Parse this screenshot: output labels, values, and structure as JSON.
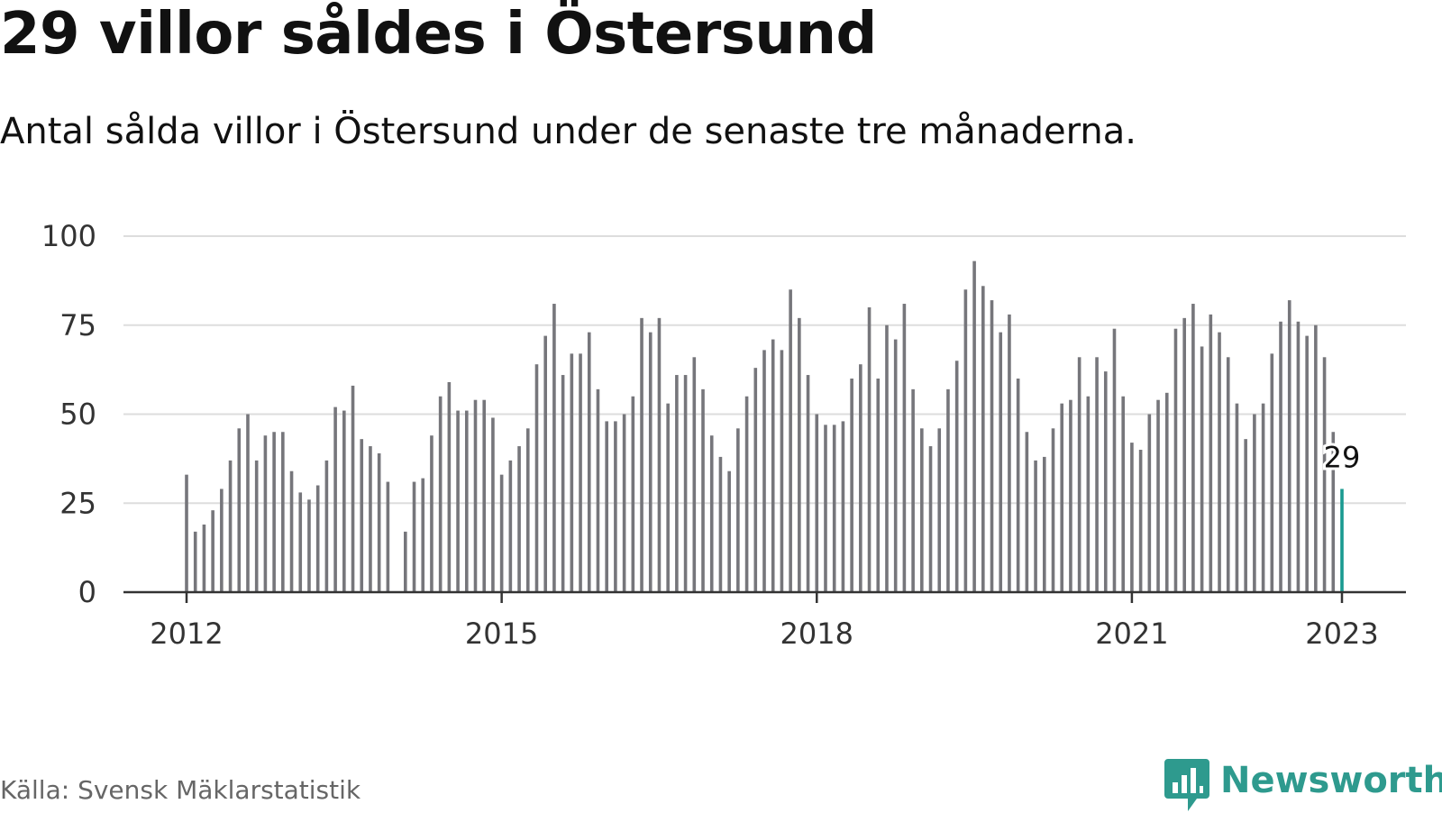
{
  "header": {
    "title": "29 villor såldes i Östersund",
    "subtitle": "Antal sålda villor i Östersund under de senaste tre månaderna."
  },
  "footer": {
    "source": "Källa: Svensk Mäklarstatistik",
    "logo_text": "Newsworthy",
    "logo_icon": "newsworthy-chart-bubble-icon"
  },
  "colors": {
    "bar": "#76767b",
    "highlight": "#1a9a91",
    "grid": "#dddddd",
    "axis": "#333333",
    "logo": "#2e9a8e"
  },
  "chart_data": {
    "type": "bar",
    "title": "29 villor såldes i Östersund",
    "subtitle": "Antal sålda villor i Östersund under de senaste tre månaderna.",
    "xlabel": "",
    "ylabel": "",
    "ylim": [
      0,
      100
    ],
    "yticks": [
      0,
      25,
      50,
      75,
      100
    ],
    "xticks": [
      "2012",
      "2015",
      "2018",
      "2021",
      "2023"
    ],
    "grid": true,
    "start": "2012-01",
    "end": "2023-01",
    "frequency": "monthly",
    "highlight": {
      "x": "2023-01",
      "value": 29,
      "label": "29"
    },
    "x": [
      "2012-01",
      "2012-02",
      "2012-03",
      "2012-04",
      "2012-05",
      "2012-06",
      "2012-07",
      "2012-08",
      "2012-09",
      "2012-10",
      "2012-11",
      "2012-12",
      "2013-01",
      "2013-02",
      "2013-03",
      "2013-04",
      "2013-05",
      "2013-06",
      "2013-07",
      "2013-08",
      "2013-09",
      "2013-10",
      "2013-11",
      "2013-12",
      "2014-01",
      "2014-02",
      "2014-03",
      "2014-04",
      "2014-05",
      "2014-06",
      "2014-07",
      "2014-08",
      "2014-09",
      "2014-10",
      "2014-11",
      "2014-12",
      "2015-01",
      "2015-02",
      "2015-03",
      "2015-04",
      "2015-05",
      "2015-06",
      "2015-07",
      "2015-08",
      "2015-09",
      "2015-10",
      "2015-11",
      "2015-12",
      "2016-01",
      "2016-02",
      "2016-03",
      "2016-04",
      "2016-05",
      "2016-06",
      "2016-07",
      "2016-08",
      "2016-09",
      "2016-10",
      "2016-11",
      "2016-12",
      "2017-01",
      "2017-02",
      "2017-03",
      "2017-04",
      "2017-05",
      "2017-06",
      "2017-07",
      "2017-08",
      "2017-09",
      "2017-10",
      "2017-11",
      "2017-12",
      "2018-01",
      "2018-02",
      "2018-03",
      "2018-04",
      "2018-05",
      "2018-06",
      "2018-07",
      "2018-08",
      "2018-09",
      "2018-10",
      "2018-11",
      "2018-12",
      "2019-01",
      "2019-02",
      "2019-03",
      "2019-04",
      "2019-05",
      "2019-06",
      "2019-07",
      "2019-08",
      "2019-09",
      "2019-10",
      "2019-11",
      "2019-12",
      "2020-01",
      "2020-02",
      "2020-03",
      "2020-04",
      "2020-05",
      "2020-06",
      "2020-07",
      "2020-08",
      "2020-09",
      "2020-10",
      "2020-11",
      "2020-12",
      "2021-01",
      "2021-02",
      "2021-03",
      "2021-04",
      "2021-05",
      "2021-06",
      "2021-07",
      "2021-08",
      "2021-09",
      "2021-10",
      "2021-11",
      "2021-12",
      "2022-01",
      "2022-02",
      "2022-03",
      "2022-04",
      "2022-05",
      "2022-06",
      "2022-07",
      "2022-08",
      "2022-09",
      "2022-10",
      "2022-11",
      "2022-12",
      "2023-01"
    ],
    "values": [
      33,
      17,
      19,
      23,
      29,
      37,
      46,
      50,
      37,
      44,
      45,
      45,
      34,
      28,
      26,
      30,
      37,
      52,
      51,
      58,
      43,
      41,
      39,
      31,
      null,
      17,
      31,
      32,
      44,
      55,
      59,
      51,
      51,
      54,
      54,
      49,
      33,
      37,
      41,
      46,
      64,
      72,
      81,
      61,
      67,
      67,
      73,
      57,
      48,
      48,
      50,
      55,
      77,
      73,
      77,
      53,
      61,
      61,
      66,
      57,
      44,
      38,
      34,
      46,
      55,
      63,
      68,
      71,
      68,
      85,
      77,
      61,
      50,
      47,
      47,
      48,
      60,
      64,
      80,
      60,
      75,
      71,
      81,
      57,
      46,
      41,
      46,
      57,
      65,
      85,
      93,
      86,
      82,
      73,
      78,
      60,
      45,
      37,
      38,
      46,
      53,
      54,
      66,
      55,
      66,
      62,
      74,
      55,
      42,
      40,
      50,
      54,
      56,
      74,
      77,
      81,
      69,
      78,
      73,
      66,
      53,
      43,
      50,
      53,
      67,
      76,
      82,
      76,
      72,
      75,
      66,
      45,
      29
    ]
  }
}
